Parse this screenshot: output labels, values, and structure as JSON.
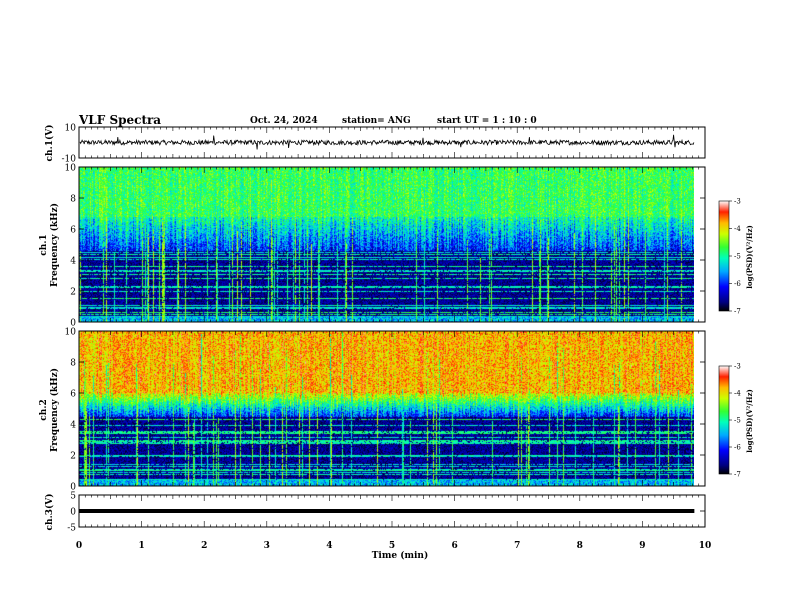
{
  "header": {
    "title": "VLF Spectra",
    "date": "Oct. 24, 2024",
    "station": "station= ANG",
    "start": "start  UT  =   1  : 10 : 0"
  },
  "chart_data": [
    {
      "panel": "ch1-waveform",
      "type": "line",
      "ylabel": "ch.1(V)",
      "ylim": [
        -10,
        10
      ],
      "yticks": [
        "10",
        "-10"
      ],
      "xlim": [
        0,
        10
      ],
      "data_extent_min": 9.83,
      "baseline": 0,
      "noise_amplitude": 1.5,
      "spikes": [
        {
          "x": 0.62,
          "y": 3.5
        },
        {
          "x": 2.15,
          "y": 4.5
        },
        {
          "x": 2.85,
          "y": -4.5
        },
        {
          "x": 3.35,
          "y": -3.5
        },
        {
          "x": 5.5,
          "y": 3.0
        },
        {
          "x": 6.1,
          "y": -3.0
        },
        {
          "x": 7.2,
          "y": 3.5
        },
        {
          "x": 9.5,
          "y": 5.0
        },
        {
          "x": 9.52,
          "y": -3.0
        }
      ]
    },
    {
      "panel": "ch1-spectrogram",
      "type": "heatmap",
      "ylabel": "Frequency (kHz)",
      "channel_label": "ch.1",
      "ylim": [
        0,
        10
      ],
      "yticks": [
        "0",
        "2",
        "4",
        "6",
        "8",
        "10"
      ],
      "xlim": [
        0,
        10
      ],
      "data_extent_min": 9.83,
      "low_band_top_khz": 4.6,
      "mid_band_top_khz": 6.8,
      "colorbar": {
        "label": "log(PSD)(V²/Hz)",
        "range": [
          -7,
          -3
        ],
        "ticks": [
          "-3",
          "-4",
          "-5",
          "-6",
          "-7"
        ]
      }
    },
    {
      "panel": "ch2-spectrogram",
      "type": "heatmap",
      "ylabel": "Frequency (kHz)",
      "channel_label": "ch.2",
      "ylim": [
        0,
        10
      ],
      "yticks": [
        "0",
        "2",
        "4",
        "6",
        "8",
        "10"
      ],
      "xlim": [
        0,
        10
      ],
      "data_extent_min": 9.83,
      "low_band_top_khz": 4.5,
      "mid_band_top_khz": 6.0,
      "colorbar": {
        "label": "log(PSD)(V²/Hz)",
        "range": [
          -7,
          -3
        ],
        "ticks": [
          "-3",
          "-4",
          "-5",
          "-6",
          "-7"
        ]
      }
    },
    {
      "panel": "ch3-waveform",
      "type": "line",
      "ylabel": "ch.3(V)",
      "ylim": [
        -5,
        5
      ],
      "yticks": [
        "5",
        "0",
        "-5"
      ],
      "xlim": [
        0,
        10
      ],
      "data_extent_min": 9.83,
      "baseline": 0
    },
    {
      "panel": "time-axis",
      "type": "axis",
      "xlabel": "Time  (min)",
      "xlim": [
        0,
        10
      ],
      "xticks": [
        "0",
        "1",
        "2",
        "3",
        "4",
        "5",
        "6",
        "7",
        "8",
        "9",
        "10"
      ]
    }
  ]
}
